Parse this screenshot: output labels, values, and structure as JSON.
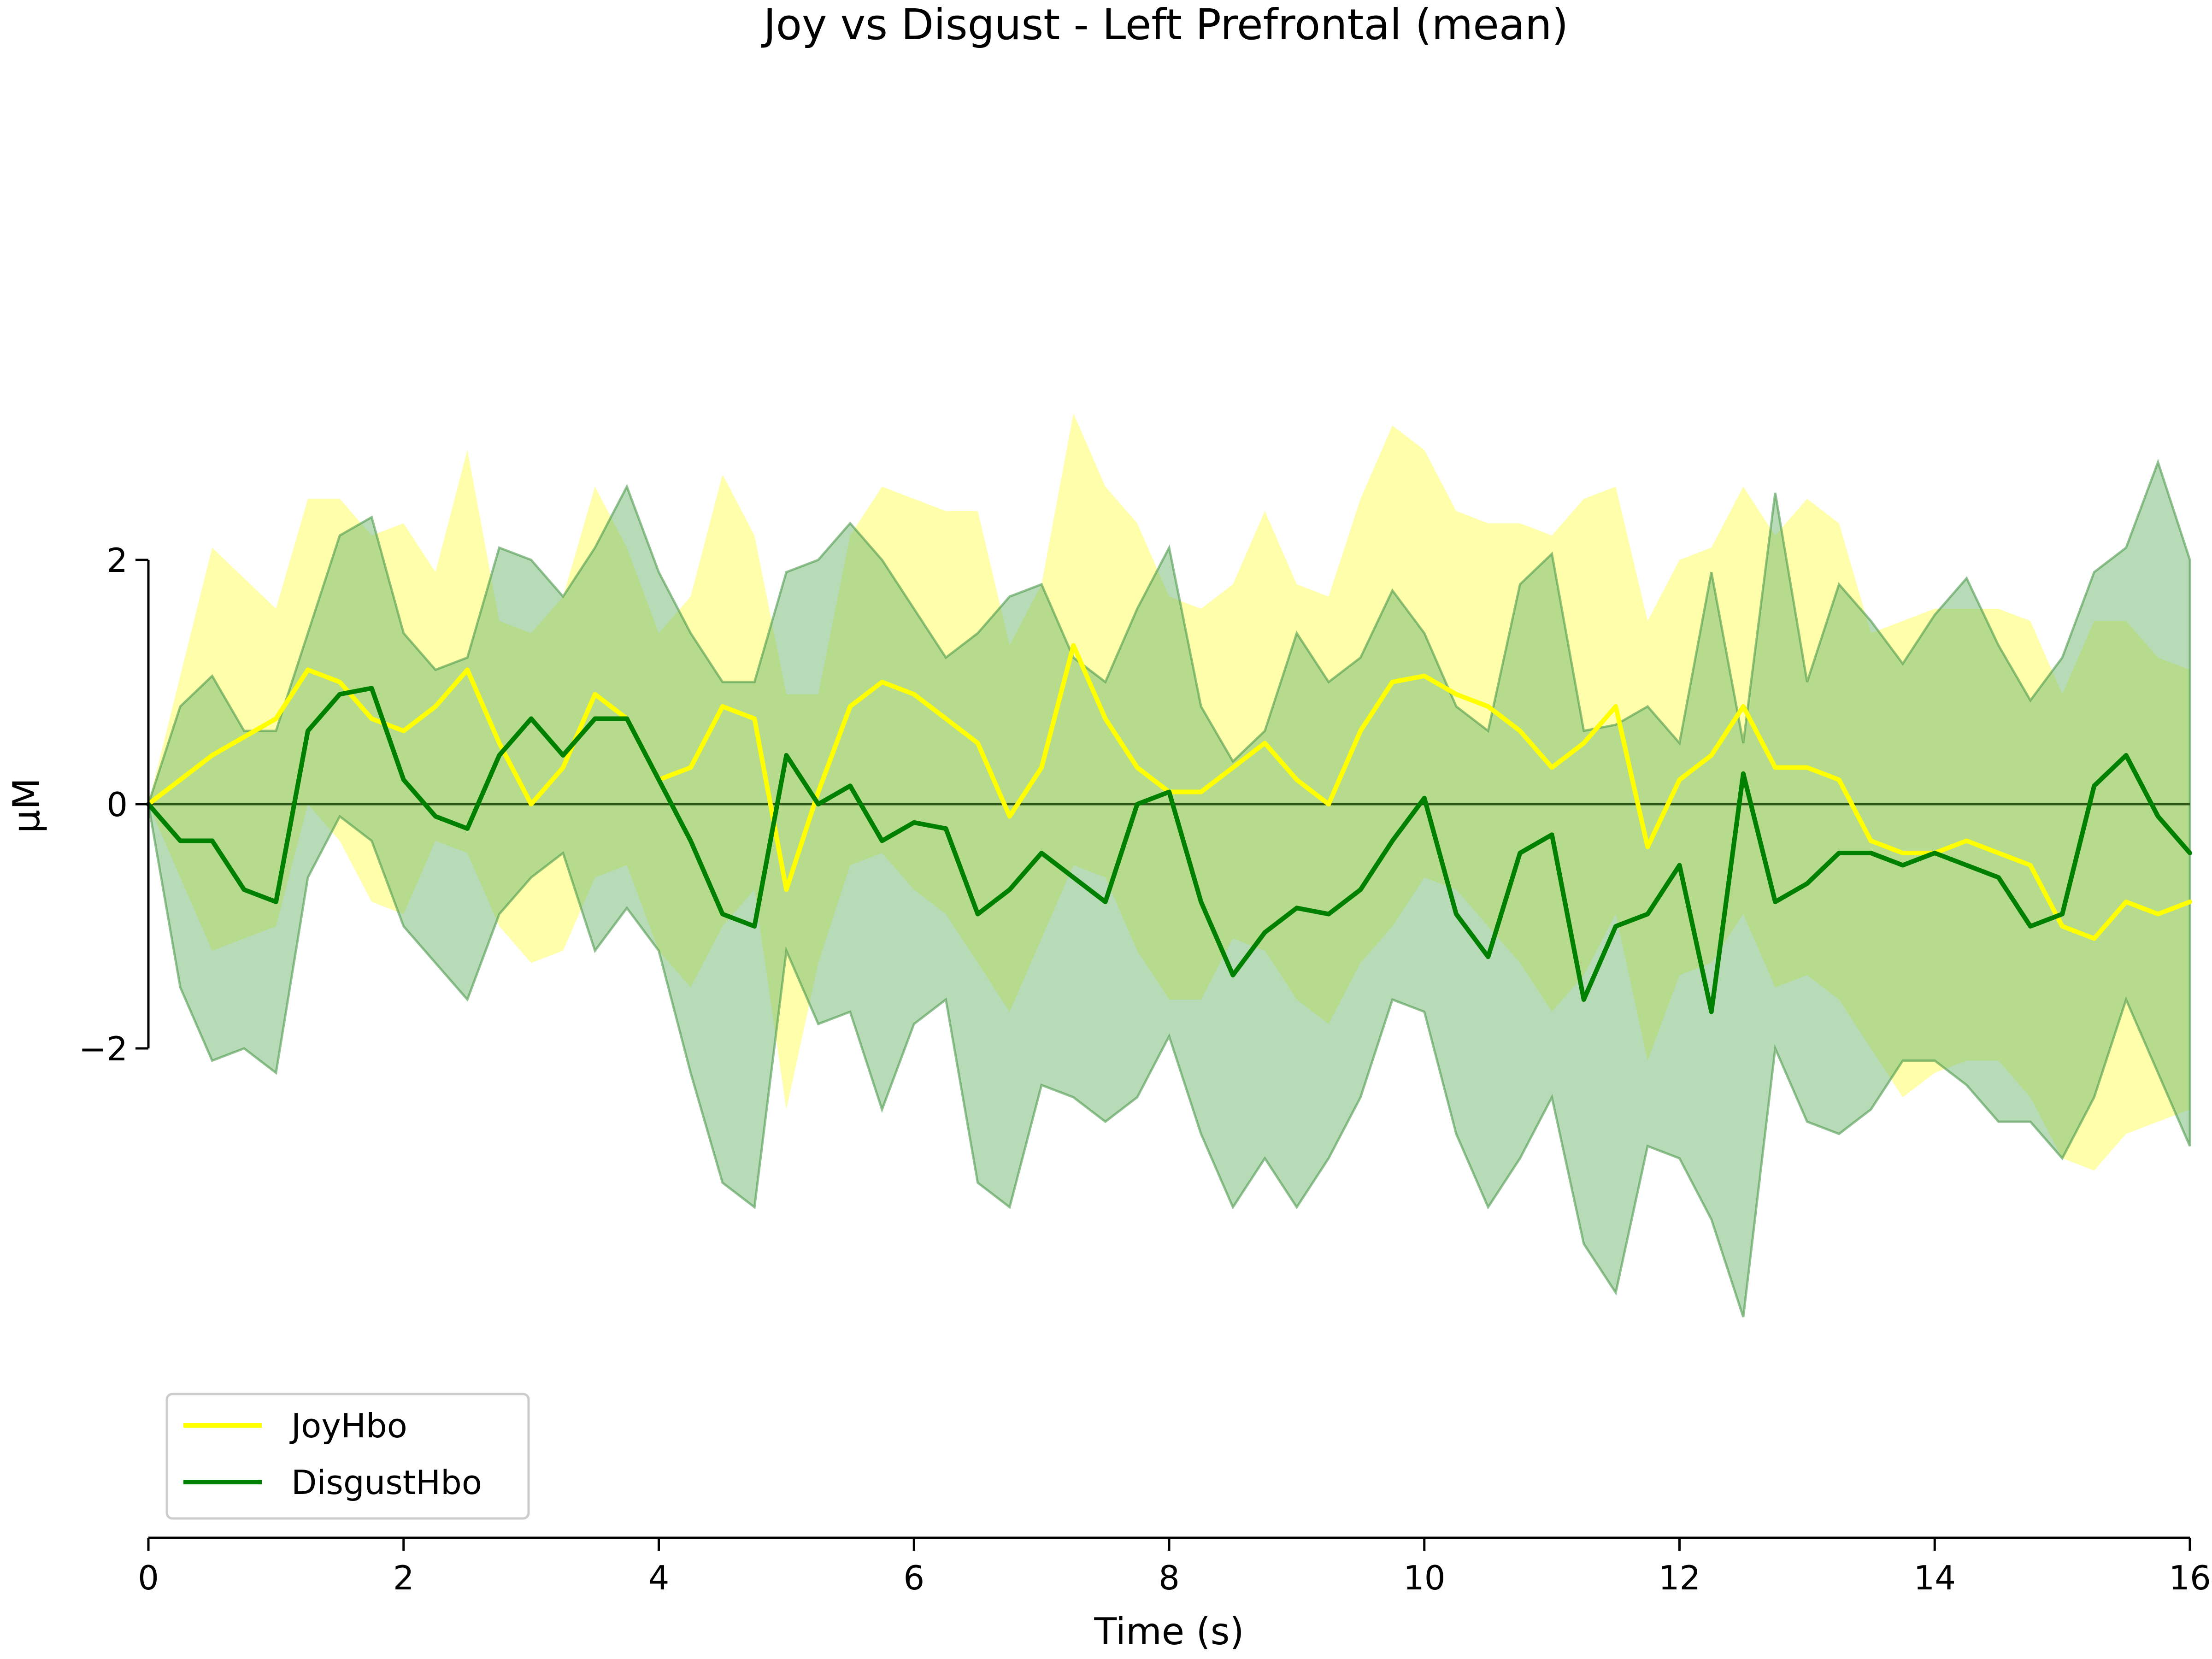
{
  "chart_data": {
    "type": "line",
    "title": "Joy vs Disgust - Left Prefrontal (mean)",
    "xlabel": "Time (s)",
    "ylabel": "μM",
    "xlim": [
      0,
      16
    ],
    "ylim": [
      -6,
      6.5
    ],
    "y_spine_range": [
      -2,
      2
    ],
    "xticks": [
      0,
      2,
      4,
      6,
      8,
      10,
      12,
      14,
      16
    ],
    "xtick_labels": [
      "0",
      "2",
      "4",
      "6",
      "8",
      "10",
      "12",
      "14",
      "16"
    ],
    "yticks": [
      -2,
      0,
      2
    ],
    "ytick_labels": [
      "−2",
      "0",
      "2"
    ],
    "zero_line": true,
    "grid": false,
    "legend_position": "lower-left",
    "series": [
      {
        "name": "JoyHbo",
        "color": "#ffff00",
        "band_color": "#ffff66",
        "x": [
          0,
          0.5,
          1,
          1.25,
          1.5,
          1.75,
          2,
          2.25,
          2.5,
          2.75,
          3,
          3.25,
          3.5,
          3.75,
          4,
          4.25,
          4.5,
          4.75,
          5,
          5.25,
          5.5,
          5.75,
          6,
          6.25,
          6.5,
          6.75,
          7,
          7.25,
          7.5,
          7.75,
          8,
          8.25,
          8.5,
          8.75,
          9,
          9.25,
          9.5,
          9.75,
          10,
          10.25,
          10.5,
          10.75,
          11,
          11.25,
          11.5,
          11.75,
          12,
          12.25,
          12.5,
          12.75,
          13,
          13.25,
          13.5,
          13.75,
          14,
          14.25,
          14.5,
          14.75,
          15,
          15.25,
          15.5,
          15.75,
          16
        ],
        "mean": [
          0,
          0.4,
          0.7,
          1.1,
          1.0,
          0.7,
          0.6,
          0.8,
          1.1,
          0.5,
          0,
          0.3,
          0.9,
          0.7,
          0.2,
          0.3,
          0.8,
          0.7,
          -0.7,
          0.1,
          0.8,
          1.0,
          0.9,
          0.7,
          0.5,
          -0.1,
          0.3,
          1.3,
          0.7,
          0.3,
          0.1,
          0.1,
          0.3,
          0.5,
          0.2,
          0,
          0.6,
          1.0,
          1.05,
          0.9,
          0.8,
          0.6,
          0.3,
          0.5,
          0.8,
          -0.35,
          0.2,
          0.4,
          0.8,
          0.3,
          0.3,
          0.2,
          -0.3,
          -0.4,
          -0.4,
          -0.3,
          -0.4,
          -0.5,
          -1.0,
          -1.1,
          -0.8,
          -0.9,
          -0.8
        ],
        "upper": [
          0,
          2.1,
          1.6,
          2.5,
          2.5,
          2.2,
          2.3,
          1.9,
          2.9,
          1.5,
          1.4,
          1.7,
          2.6,
          2.1,
          1.4,
          1.7,
          2.7,
          2.2,
          0.9,
          0.9,
          2.2,
          2.6,
          2.5,
          2.4,
          2.4,
          1.3,
          1.8,
          3.2,
          2.6,
          2.3,
          1.7,
          1.6,
          1.8,
          2.4,
          1.8,
          1.7,
          2.5,
          3.1,
          2.9,
          2.4,
          2.3,
          2.3,
          2.2,
          2.5,
          2.6,
          1.5,
          2.0,
          2.1,
          2.6,
          2.2,
          2.5,
          2.3,
          1.4,
          1.5,
          1.6,
          1.6,
          1.6,
          1.5,
          0.9,
          1.5,
          1.5,
          1.2,
          1.1
        ],
        "lower": [
          0,
          -1.2,
          -1.0,
          0.0,
          -0.3,
          -0.8,
          -0.9,
          -0.3,
          -0.4,
          -1.0,
          -1.3,
          -1.2,
          -0.6,
          -0.5,
          -1.2,
          -1.5,
          -1.0,
          -0.7,
          -2.5,
          -1.3,
          -0.5,
          -0.4,
          -0.7,
          -0.9,
          -1.3,
          -1.7,
          -1.1,
          -0.5,
          -0.6,
          -1.2,
          -1.6,
          -1.6,
          -1.1,
          -1.2,
          -1.6,
          -1.8,
          -1.3,
          -1.0,
          -0.6,
          -0.7,
          -1.0,
          -1.3,
          -1.7,
          -1.4,
          -0.9,
          -2.1,
          -1.4,
          -1.3,
          -0.9,
          -1.5,
          -1.4,
          -1.6,
          -2.0,
          -2.4,
          -2.2,
          -2.1,
          -2.1,
          -2.4,
          -2.9,
          -3.0,
          -2.7,
          -2.6,
          -2.5
        ]
      },
      {
        "name": "DisgustHbo",
        "color": "#008000",
        "band_color": "#70b870",
        "x": [
          0,
          0.25,
          0.5,
          0.75,
          1,
          1.25,
          1.5,
          1.75,
          2,
          2.25,
          2.5,
          2.75,
          3,
          3.25,
          3.5,
          3.75,
          4,
          4.25,
          4.5,
          4.75,
          5,
          5.25,
          5.5,
          5.75,
          6,
          6.25,
          6.5,
          6.75,
          7,
          7.25,
          7.5,
          7.75,
          8,
          8.25,
          8.5,
          8.75,
          9,
          9.25,
          9.5,
          9.75,
          10,
          10.25,
          10.5,
          10.75,
          11,
          11.25,
          11.5,
          11.75,
          12,
          12.25,
          12.5,
          12.75,
          13,
          13.25,
          13.5,
          13.75,
          14,
          14.25,
          14.5,
          14.75,
          15,
          15.25,
          15.5,
          15.75,
          16
        ],
        "mean": [
          0,
          -0.3,
          -0.3,
          -0.7,
          -0.8,
          0.6,
          0.9,
          0.95,
          0.2,
          -0.1,
          -0.2,
          0.4,
          0.7,
          0.4,
          0.7,
          0.7,
          0.2,
          -0.3,
          -0.9,
          -1.0,
          0.4,
          0.0,
          0.15,
          -0.3,
          -0.15,
          -0.2,
          -0.9,
          -0.7,
          -0.4,
          -0.6,
          -0.8,
          0.0,
          0.1,
          -0.8,
          -1.4,
          -1.05,
          -0.85,
          -0.9,
          -0.7,
          -0.3,
          0.05,
          -0.9,
          -1.25,
          -0.4,
          -0.25,
          -1.6,
          -1.0,
          -0.9,
          -0.5,
          -1.7,
          0.25,
          -0.8,
          -0.65,
          -0.4,
          -0.4,
          -0.5,
          -0.4,
          -0.5,
          -0.6,
          -1.0,
          -0.9,
          0.15,
          0.4,
          -0.1,
          -0.4
        ],
        "upper": [
          0,
          0.8,
          1.05,
          0.6,
          0.6,
          1.4,
          2.2,
          2.35,
          1.4,
          1.1,
          1.2,
          2.1,
          2.0,
          1.7,
          2.1,
          2.6,
          1.9,
          1.4,
          1.0,
          1.0,
          1.9,
          2.0,
          2.3,
          2.0,
          1.6,
          1.2,
          1.4,
          1.7,
          1.8,
          1.2,
          1.0,
          1.6,
          2.1,
          0.8,
          0.35,
          0.6,
          1.4,
          1.0,
          1.2,
          1.75,
          1.4,
          0.8,
          0.6,
          1.8,
          2.05,
          0.6,
          0.65,
          0.8,
          0.5,
          1.9,
          0.5,
          2.55,
          1.0,
          1.8,
          1.5,
          1.15,
          1.55,
          1.85,
          1.3,
          0.85,
          1.2,
          1.9,
          2.1,
          2.8,
          2.0
        ],
        "lower": [
          0,
          -1.5,
          -2.1,
          -2.0,
          -2.2,
          -0.6,
          -0.1,
          -0.3,
          -1.0,
          -1.3,
          -1.6,
          -0.9,
          -0.6,
          -0.4,
          -1.2,
          -0.85,
          -1.2,
          -2.2,
          -3.1,
          -3.3,
          -1.2,
          -1.8,
          -1.7,
          -2.5,
          -1.8,
          -1.6,
          -3.1,
          -3.3,
          -2.3,
          -2.4,
          -2.6,
          -2.4,
          -1.9,
          -2.7,
          -3.3,
          -2.9,
          -3.3,
          -2.9,
          -2.4,
          -1.6,
          -1.7,
          -2.7,
          -3.3,
          -2.9,
          -2.4,
          -3.6,
          -4.0,
          -2.8,
          -2.9,
          -3.4,
          -4.2,
          -2.0,
          -2.6,
          -2.7,
          -2.5,
          -2.1,
          -2.1,
          -2.3,
          -2.6,
          -2.6,
          -2.9,
          -2.4,
          -1.6,
          -2.2,
          -2.8
        ]
      }
    ]
  }
}
